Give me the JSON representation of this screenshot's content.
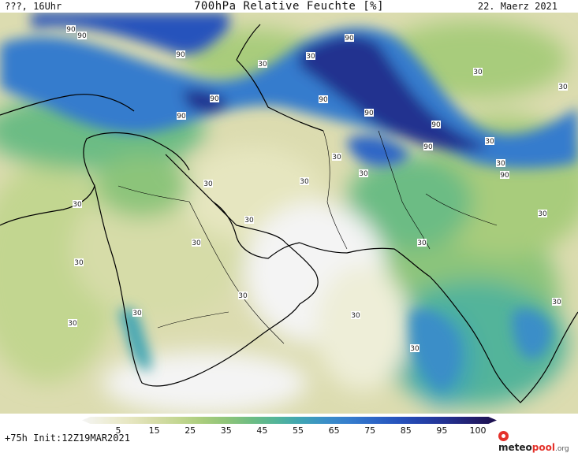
{
  "header": {
    "left": "???, 16Uhr",
    "title": "700hPa Relative Feuchte [%]",
    "date": "22. Maerz 2021"
  },
  "footer": {
    "run": "+75h Init:12Z19MAR2021",
    "logo_main": "meteo",
    "logo_accent": "pool",
    "logo_suffix": ".org"
  },
  "legend": {
    "ticks": [
      "5",
      "15",
      "25",
      "35",
      "45",
      "55",
      "65",
      "75",
      "85",
      "95",
      "100"
    ],
    "colors": [
      "#f4f4f4",
      "#eeeed8",
      "#e6e6c0",
      "#d6dca8",
      "#c2d690",
      "#a8cc7c",
      "#8cc47a",
      "#6cbc84",
      "#52b49a",
      "#3fa4b4",
      "#3a8ec8",
      "#357ccd",
      "#2d66c6",
      "#2652bc",
      "#2440a8",
      "#23308f",
      "#221f6e",
      "#1c0f4c"
    ]
  },
  "map": {
    "contour_labels": {
      "values": [
        "90",
        "90",
        "90",
        "30",
        "30",
        "30",
        "90",
        "90",
        "90",
        "90",
        "90",
        "30",
        "90",
        "90",
        "30",
        "30",
        "30",
        "90",
        "30",
        "30",
        "30",
        "30",
        "30",
        "30",
        "30",
        "30",
        "30",
        "30",
        "30",
        "30",
        "30",
        "30",
        "30"
      ]
    },
    "colors": {
      "humid_high": "#23308f",
      "humid_mid": "#357ccd",
      "moderate": "#8cc47a",
      "dry": "#e6e6c0",
      "very_dry": "#f4f4f4",
      "coastline": "#000000"
    }
  }
}
